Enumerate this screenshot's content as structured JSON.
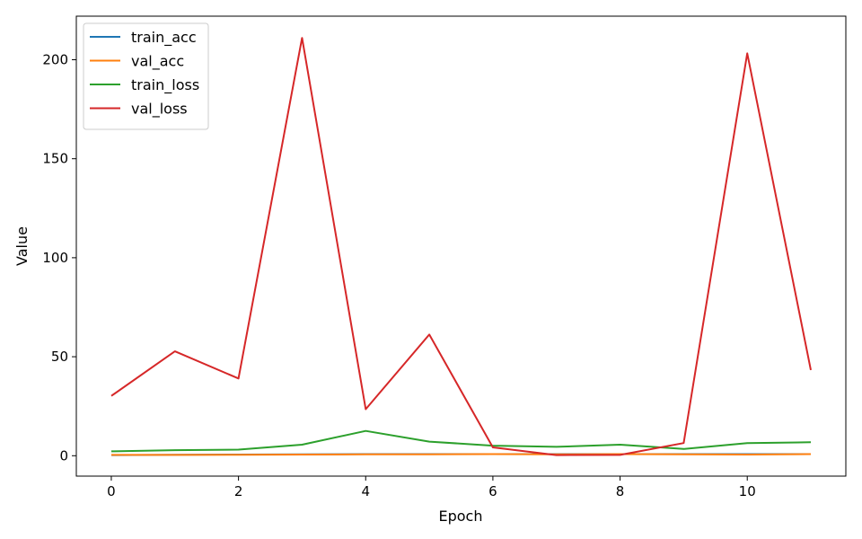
{
  "chart_data": {
    "type": "line",
    "xlabel": "Epoch",
    "ylabel": "Value",
    "x": [
      0,
      1,
      2,
      3,
      4,
      5,
      6,
      7,
      8,
      9,
      10,
      11
    ],
    "xlim": [
      -0.55,
      11.55
    ],
    "ylim": [
      -10.3,
      222
    ],
    "xticks": [
      0,
      2,
      4,
      6,
      8,
      10
    ],
    "yticks": [
      0,
      50,
      100,
      150,
      200
    ],
    "grid": false,
    "legend_position": "top-left",
    "series": [
      {
        "name": "train_acc",
        "color": "#1f77b4",
        "values": [
          0.3,
          0.5,
          0.6,
          0.7,
          0.8,
          0.8,
          0.8,
          0.8,
          0.8,
          0.8,
          0.8,
          0.8
        ]
      },
      {
        "name": "val_acc",
        "color": "#ff7f0e",
        "values": [
          0.4,
          0.4,
          0.5,
          0.6,
          0.7,
          0.7,
          0.8,
          0.7,
          0.8,
          0.7,
          0.6,
          0.8
        ]
      },
      {
        "name": "train_loss",
        "color": "#2ca02c",
        "values": [
          2.2,
          2.8,
          3.1,
          5.6,
          12.5,
          7.1,
          5.1,
          4.5,
          5.6,
          3.4,
          6.4,
          6.8
        ]
      },
      {
        "name": "val_loss",
        "color": "#d62728",
        "values": [
          30.2,
          52.7,
          39.0,
          211.0,
          23.5,
          61.2,
          4.2,
          0.3,
          0.4,
          6.4,
          203.2,
          43.3
        ]
      }
    ]
  }
}
